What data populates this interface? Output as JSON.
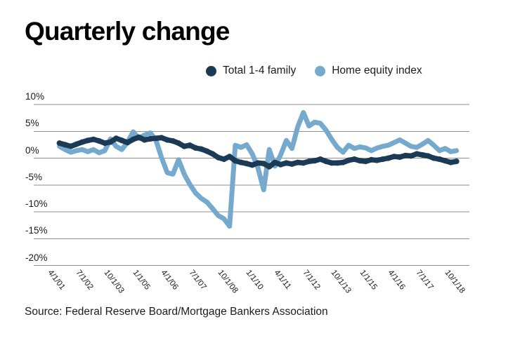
{
  "title": "Quarterly change",
  "legend": [
    {
      "label": "Total 1-4 family",
      "color": "#1b3a55"
    },
    {
      "label": "Home equity index",
      "color": "#75a9ce"
    }
  ],
  "source": "Source: Federal Reserve Board/Mortgage Bankers Association",
  "colors": {
    "navy": "#1b3a55",
    "light_blue": "#75a9ce",
    "gridline": "#8f8f8f",
    "text": "#1a1a1a"
  },
  "chart_data": {
    "type": "line",
    "title": "Quarterly change",
    "xlabel": "",
    "ylabel": "",
    "grid": true,
    "legend_position": "top",
    "ylim": [
      -20,
      10
    ],
    "y_tick_values": [
      10,
      5,
      0,
      -5,
      -10,
      -15,
      -20
    ],
    "y_tick_labels": [
      "10%",
      "5%",
      "0%",
      "-5%",
      "-10%",
      "-15%",
      "-20%"
    ],
    "x_tick_every": 5,
    "x_tick_labels": [
      "4/1/01",
      "7/1/02",
      "10/1/03",
      "1/1/05",
      "4/1/06",
      "7/1/07",
      "10/1/08",
      "1/1/10",
      "4/1/11",
      "7/1/12",
      "10/1/13",
      "1/1/15",
      "4/1/16",
      "7/1/17",
      "10/1/18"
    ],
    "x_quarterly_start": "4/1/01",
    "x_quarterly_end": "10/1/18",
    "series": [
      {
        "name": "Total 1-4 family",
        "color": "#1b3a55",
        "values": [
          2.8,
          2.5,
          2.2,
          2.6,
          3.0,
          3.3,
          3.5,
          3.2,
          2.8,
          3.0,
          3.7,
          3.3,
          2.9,
          3.5,
          3.9,
          3.4,
          3.6,
          3.7,
          3.8,
          3.4,
          3.2,
          2.8,
          2.2,
          2.4,
          1.9,
          1.7,
          1.3,
          0.8,
          0.1,
          -0.2,
          0.3,
          -0.5,
          -0.8,
          -1.0,
          -1.3,
          -0.9,
          -1.0,
          -1.6,
          -0.8,
          -1.2,
          -0.9,
          -1.1,
          -0.8,
          -0.9,
          -0.6,
          -0.5,
          -0.2,
          -0.6,
          -0.9,
          -0.9,
          -0.8,
          -0.4,
          -0.2,
          -0.5,
          -0.6,
          -0.3,
          -0.4,
          -0.2,
          0.0,
          0.3,
          0.2,
          0.5,
          0.4,
          0.8,
          0.6,
          0.4,
          0.0,
          -0.2,
          -0.5,
          -0.8,
          -0.6
        ]
      },
      {
        "name": "Home equity index",
        "color": "#75a9ce",
        "values": [
          2.2,
          1.6,
          1.1,
          1.4,
          1.6,
          1.2,
          1.6,
          1.0,
          1.4,
          3.6,
          2.2,
          1.6,
          3.0,
          4.9,
          3.7,
          4.3,
          4.7,
          3.4,
          0.1,
          -2.7,
          -3.0,
          -0.3,
          -3.0,
          -4.9,
          -6.5,
          -7.5,
          -8.2,
          -9.4,
          -10.7,
          -11.3,
          -12.7,
          2.4,
          2.0,
          2.5,
          0.8,
          -1.8,
          -5.9,
          1.6,
          -1.5,
          0.6,
          3.3,
          1.8,
          5.8,
          8.5,
          6.0,
          6.7,
          6.5,
          5.2,
          3.5,
          2.0,
          1.1,
          2.4,
          1.8,
          2.1,
          1.9,
          1.4,
          1.9,
          2.2,
          2.4,
          2.9,
          3.4,
          2.8,
          2.2,
          2.0,
          2.6,
          3.3,
          2.4,
          1.4,
          1.8,
          1.2,
          1.4
        ]
      }
    ]
  }
}
